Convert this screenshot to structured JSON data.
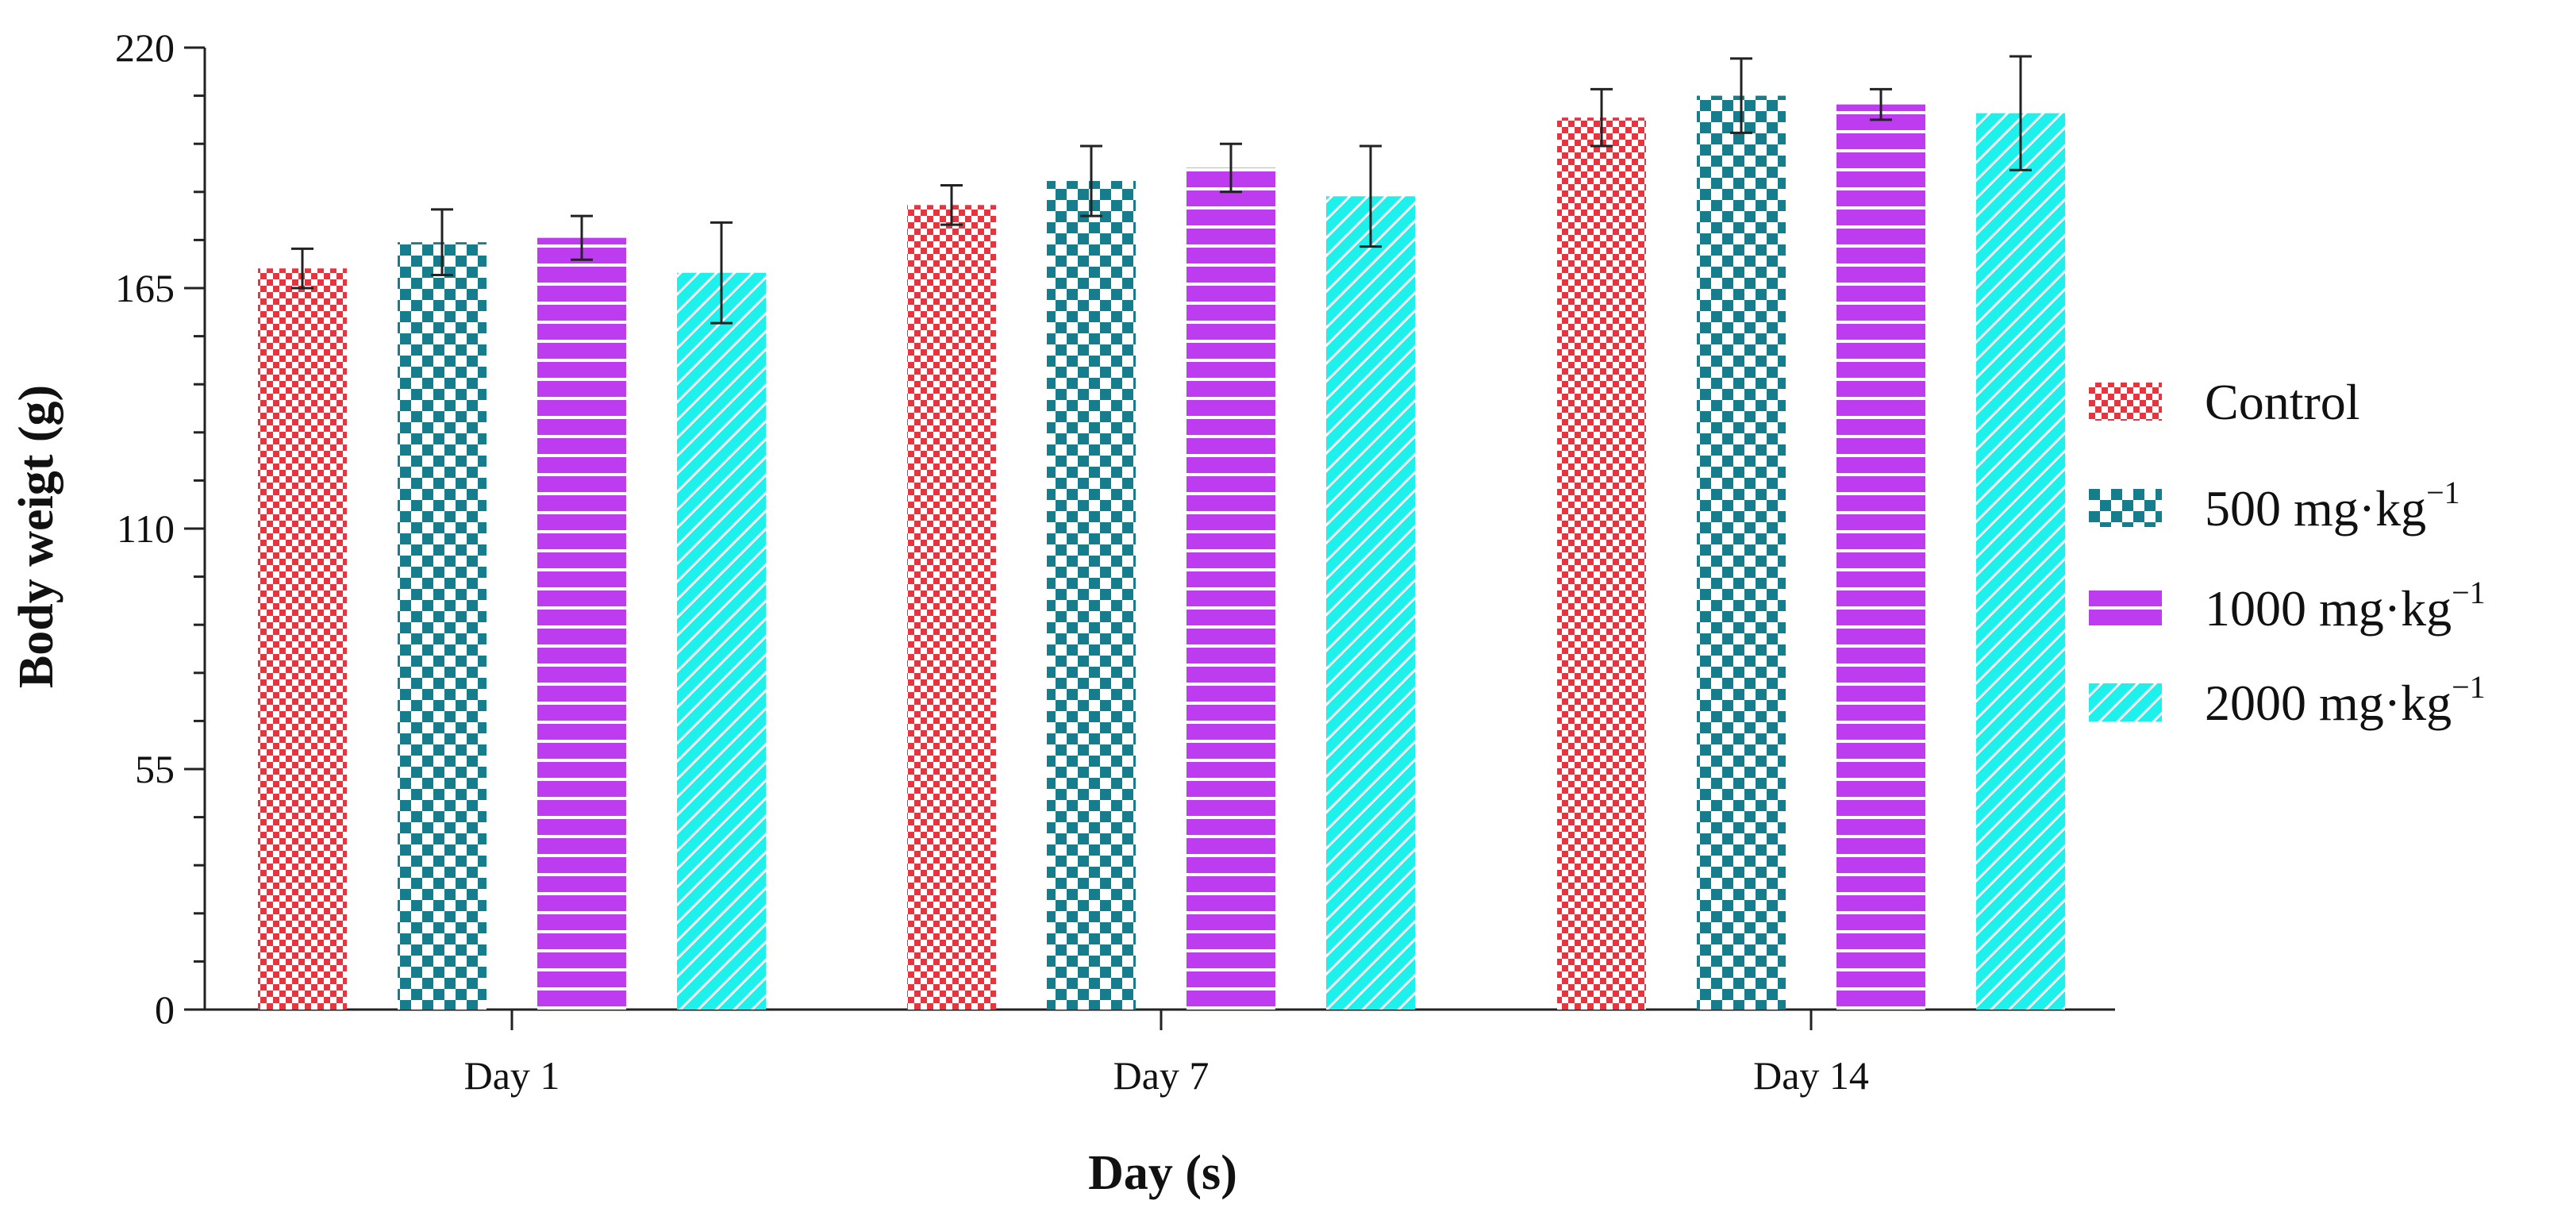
{
  "chart_data": {
    "type": "bar",
    "xlabel": "Day (s)",
    "ylabel": "Body weigt (g)",
    "ylim": [
      0,
      220
    ],
    "yticks": [
      0,
      55,
      110,
      165,
      220
    ],
    "grid": false,
    "legend_position": "right",
    "categories": [
      "Day 1",
      "Day 7",
      "Day 14"
    ],
    "series": [
      {
        "name": "Control",
        "unit_sup": "",
        "color": "#e8343f",
        "pattern": "small-checker",
        "values": [
          169.5,
          184,
          204
        ],
        "errors": [
          4.5,
          4.5,
          6.5
        ]
      },
      {
        "name": "500 mg·kg",
        "unit_sup": "−1",
        "color": "#157d8c",
        "pattern": "large-checker",
        "values": [
          175.5,
          189.5,
          209
        ],
        "errors": [
          7.5,
          8,
          8.5
        ]
      },
      {
        "name": "1000 mg·kg",
        "unit_sup": "−1",
        "color": "#bd3cf0",
        "pattern": "horizontal-lines",
        "values": [
          176.5,
          192.5,
          207
        ],
        "errors": [
          5,
          5.5,
          3.5
        ]
      },
      {
        "name": "2000 mg·kg",
        "unit_sup": "−1",
        "color": "#1ef0ec",
        "pattern": "diagonal-lines",
        "values": [
          168.5,
          186,
          205
        ],
        "errors": [
          11.5,
          11.5,
          13
        ]
      }
    ]
  }
}
